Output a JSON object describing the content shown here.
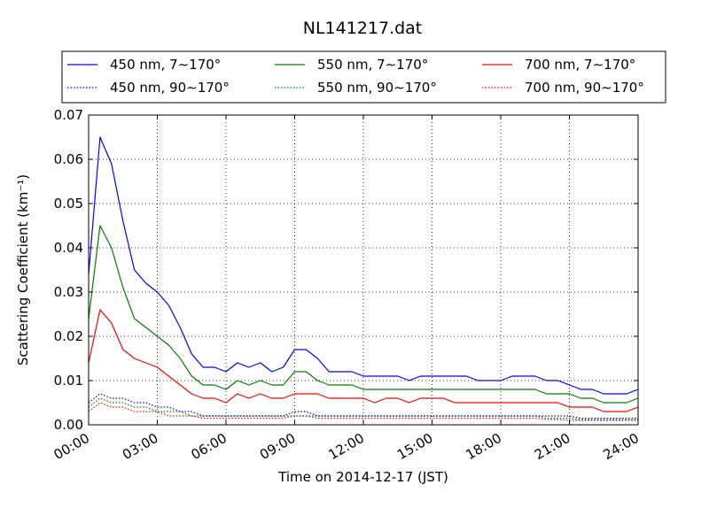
{
  "chart_data": {
    "type": "line",
    "title": "NL141217.dat",
    "xlabel": "Time on 2014-12-17 (JST)",
    "ylabel": "Scattering Coefficient (km⁻¹)",
    "x_ticks": [
      "00:00",
      "03:00",
      "06:00",
      "09:00",
      "12:00",
      "15:00",
      "18:00",
      "21:00",
      "24:00"
    ],
    "y_ticks": [
      "0.00",
      "0.01",
      "0.02",
      "0.03",
      "0.04",
      "0.05",
      "0.06",
      "0.07"
    ],
    "xlim": [
      "2014-12-17 00:00",
      "2014-12-18 00:00"
    ],
    "ylim": [
      0,
      0.07
    ],
    "grid": true,
    "legend_position": "above plot",
    "x": [
      "00:00",
      "00:30",
      "01:00",
      "01:30",
      "02:00",
      "02:30",
      "03:00",
      "03:30",
      "04:00",
      "04:30",
      "05:00",
      "05:30",
      "06:00",
      "06:30",
      "07:00",
      "07:30",
      "08:00",
      "08:30",
      "09:00",
      "09:30",
      "10:00",
      "10:30",
      "11:00",
      "11:30",
      "12:00",
      "12:30",
      "13:00",
      "13:30",
      "14:00",
      "14:30",
      "15:00",
      "15:30",
      "16:00",
      "16:30",
      "17:00",
      "17:30",
      "18:00",
      "18:30",
      "19:00",
      "19:30",
      "20:00",
      "20:30",
      "21:00",
      "21:30",
      "22:00",
      "22:30",
      "23:00",
      "23:30",
      "24:00"
    ],
    "series": [
      {
        "name": "450 nm, 7∼170°",
        "color": "#0000ff",
        "style": "solid",
        "values": [
          0.034,
          0.065,
          0.059,
          0.046,
          0.035,
          0.032,
          0.03,
          0.027,
          0.022,
          0.016,
          0.013,
          0.013,
          0.012,
          0.014,
          0.013,
          0.014,
          0.012,
          0.013,
          0.017,
          0.017,
          0.015,
          0.012,
          0.012,
          0.012,
          0.011,
          0.011,
          0.011,
          0.011,
          0.01,
          0.011,
          0.011,
          0.011,
          0.011,
          0.011,
          0.01,
          0.01,
          0.01,
          0.011,
          0.011,
          0.011,
          0.01,
          0.01,
          0.009,
          0.008,
          0.008,
          0.007,
          0.007,
          0.007,
          0.008
        ]
      },
      {
        "name": "550 nm, 7∼170°",
        "color": "#008000",
        "style": "solid",
        "values": [
          0.024,
          0.045,
          0.04,
          0.031,
          0.024,
          0.022,
          0.02,
          0.018,
          0.015,
          0.011,
          0.009,
          0.009,
          0.008,
          0.01,
          0.009,
          0.01,
          0.009,
          0.009,
          0.012,
          0.012,
          0.01,
          0.009,
          0.009,
          0.009,
          0.008,
          0.008,
          0.008,
          0.008,
          0.008,
          0.008,
          0.008,
          0.008,
          0.008,
          0.008,
          0.008,
          0.008,
          0.008,
          0.008,
          0.008,
          0.008,
          0.007,
          0.007,
          0.007,
          0.006,
          0.006,
          0.005,
          0.005,
          0.005,
          0.006
        ]
      },
      {
        "name": "700 nm, 7∼170°",
        "color": "#ff0000",
        "style": "solid",
        "values": [
          0.014,
          0.026,
          0.023,
          0.017,
          0.015,
          0.014,
          0.013,
          0.011,
          0.009,
          0.007,
          0.006,
          0.006,
          0.005,
          0.007,
          0.006,
          0.007,
          0.006,
          0.006,
          0.007,
          0.007,
          0.007,
          0.006,
          0.006,
          0.006,
          0.006,
          0.005,
          0.006,
          0.006,
          0.005,
          0.006,
          0.006,
          0.006,
          0.005,
          0.005,
          0.005,
          0.005,
          0.005,
          0.005,
          0.005,
          0.005,
          0.005,
          0.005,
          0.004,
          0.004,
          0.004,
          0.003,
          0.003,
          0.003,
          0.004
        ]
      },
      {
        "name": "450 nm, 90∼170°",
        "color": "#0000ff",
        "style": "dotted",
        "values": [
          0.005,
          0.007,
          0.006,
          0.006,
          0.005,
          0.005,
          0.004,
          0.004,
          0.003,
          0.003,
          0.002,
          0.002,
          0.002,
          0.002,
          0.002,
          0.002,
          0.002,
          0.002,
          0.003,
          0.003,
          0.002,
          0.002,
          0.002,
          0.002,
          0.002,
          0.002,
          0.002,
          0.002,
          0.002,
          0.002,
          0.002,
          0.002,
          0.002,
          0.002,
          0.002,
          0.002,
          0.002,
          0.002,
          0.002,
          0.002,
          0.002,
          0.002,
          0.002,
          0.0015,
          0.0015,
          0.0015,
          0.0015,
          0.0015,
          0.0015
        ]
      },
      {
        "name": "550 nm, 90∼170°",
        "color": "#008000",
        "style": "dotted",
        "values": [
          0.004,
          0.006,
          0.005,
          0.005,
          0.004,
          0.004,
          0.003,
          0.003,
          0.003,
          0.002,
          0.002,
          0.002,
          0.002,
          0.002,
          0.002,
          0.002,
          0.002,
          0.002,
          0.002,
          0.002,
          0.002,
          0.002,
          0.002,
          0.002,
          0.002,
          0.002,
          0.002,
          0.002,
          0.002,
          0.002,
          0.002,
          0.002,
          0.002,
          0.002,
          0.002,
          0.002,
          0.002,
          0.002,
          0.002,
          0.002,
          0.0015,
          0.0015,
          0.0015,
          0.0012,
          0.0012,
          0.0012,
          0.0012,
          0.0012,
          0.0012
        ]
      },
      {
        "name": "700 nm, 90∼170°",
        "color": "#ff0000",
        "style": "dotted",
        "values": [
          0.003,
          0.005,
          0.004,
          0.004,
          0.003,
          0.003,
          0.003,
          0.002,
          0.002,
          0.002,
          0.0015,
          0.0015,
          0.0015,
          0.0015,
          0.0015,
          0.0015,
          0.0015,
          0.0015,
          0.002,
          0.002,
          0.0015,
          0.0015,
          0.0015,
          0.0015,
          0.0015,
          0.0015,
          0.0015,
          0.0015,
          0.0015,
          0.0015,
          0.0015,
          0.0015,
          0.0015,
          0.0015,
          0.0015,
          0.0015,
          0.0015,
          0.0015,
          0.0015,
          0.0015,
          0.0012,
          0.0012,
          0.001,
          0.001,
          0.001,
          0.001,
          0.001,
          0.001,
          0.001
        ]
      }
    ]
  }
}
